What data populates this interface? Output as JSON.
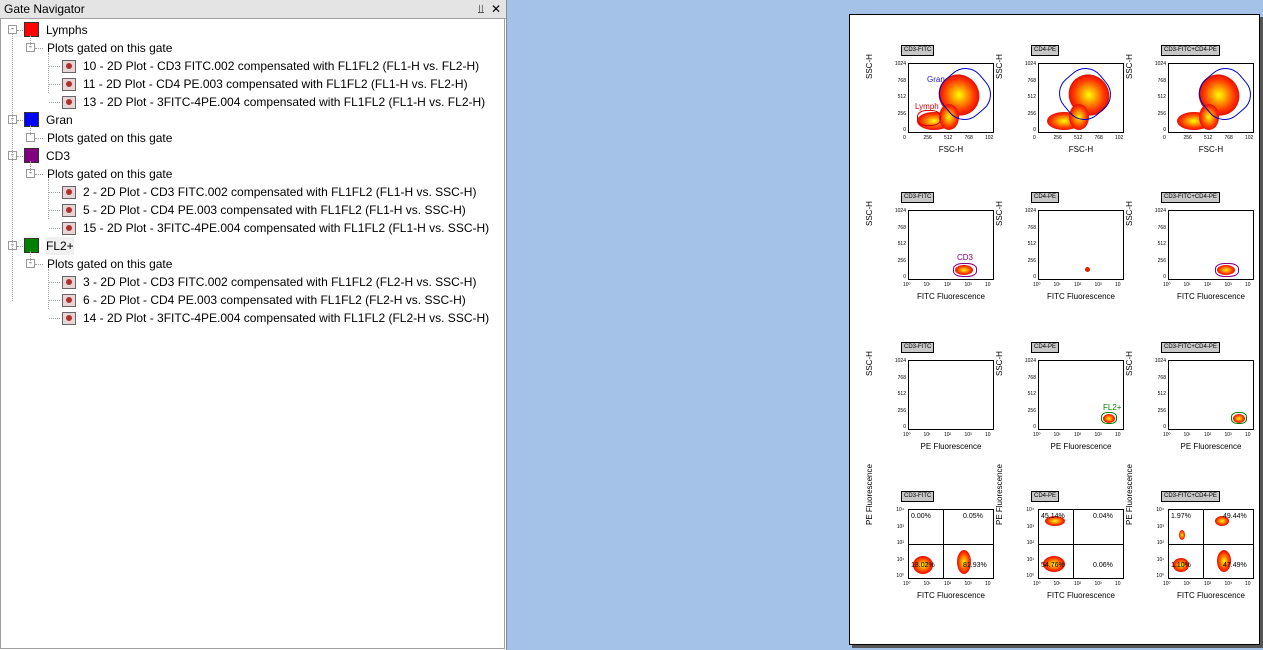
{
  "navigator": {
    "title": "Gate Navigator",
    "pin_glyph": "⫫",
    "close_glyph": "✕",
    "gates": [
      {
        "name": "Lymphs",
        "color": "#ff0000",
        "sub_label": "Plots gated on this gate",
        "plots": [
          "10 - 2D Plot - CD3 FITC.002 compensated with FL1FL2 (FL1-H vs. FL2-H)",
          "11 - 2D Plot - CD4 PE.003 compensated with FL1FL2 (FL1-H vs. FL2-H)",
          "13 - 2D Plot - 3FITC-4PE.004 compensated with FL1FL2 (FL1-H vs. FL2-H)"
        ]
      },
      {
        "name": "Gran",
        "color": "#0000ff",
        "sub_label": "Plots gated on this gate",
        "plots": []
      },
      {
        "name": "CD3",
        "color": "#800080",
        "sub_label": "Plots gated on this gate",
        "plots": [
          "2 - 2D Plot - CD3 FITC.002 compensated with FL1FL2 (FL1-H vs. SSC-H)",
          "5 - 2D Plot - CD4 PE.003 compensated with FL1FL2 (FL1-H vs. SSC-H)",
          "15 - 2D Plot - 3FITC-4PE.004 compensated with FL1FL2 (FL1-H vs. SSC-H)"
        ]
      },
      {
        "name": "FL2+",
        "color": "#008000",
        "sub_label": "Plots gated on this gate",
        "plots": [
          "3 - 2D Plot - CD3 FITC.002 compensated with FL1FL2 (FL2-H vs. SSC-H)",
          "6 - 2D Plot - CD4 PE.003 compensated with FL1FL2 (FL2-H vs. SSC-H)",
          "14 - 2D Plot - 3FITC-4PE.004 compensated with FL1FL2 (FL2-H vs. SSC-H)"
        ]
      }
    ]
  },
  "layout_page": {
    "columns": [
      "CD3-FITC",
      "CD4-PE",
      "CD3-FITC+CD4-PE"
    ],
    "rows": [
      {
        "ylabel": "SSC-H",
        "xlabel": "FSC-H",
        "yticks": [
          "1024",
          "768",
          "512",
          "256",
          "0"
        ],
        "xticks": [
          "0",
          "256",
          "512",
          "768",
          "102"
        ],
        "scale": "linear",
        "gates": [
          [
            "Gran",
            "Lymph"
          ],
          [],
          []
        ]
      },
      {
        "ylabel": "SSC-H",
        "xlabel": "FITC Fluorescence",
        "yticks": [
          "1024",
          "768",
          "512",
          "256",
          "0"
        ],
        "xticks": [
          "10⁰",
          "10¹",
          "10²",
          "10³",
          "10"
        ],
        "scale": "log",
        "gates": [
          [
            "CD3"
          ],
          [],
          []
        ]
      },
      {
        "ylabel": "SSC-H",
        "xlabel": "PE Fluorescence",
        "yticks": [
          "1024",
          "768",
          "512",
          "256",
          "0"
        ],
        "xticks": [
          "10⁰",
          "10¹",
          "10²",
          "10³",
          "10"
        ],
        "scale": "log",
        "gates": [
          [],
          [
            "FL2+"
          ],
          []
        ]
      },
      {
        "ylabel": "PE Fluorescence",
        "xlabel": "FITC Fluorescence",
        "yticks": [
          "10⁴",
          "10³",
          "10²",
          "10¹",
          "10⁰"
        ],
        "xticks": [
          "10⁰",
          "10¹",
          "10²",
          "10³",
          "10"
        ],
        "scale": "log",
        "quadrants": [
          {
            "ul": "0.00%",
            "ur": "0.05%",
            "ll": "18.02%",
            "lr": "81.93%"
          },
          {
            "ul": "45.14%",
            "ur": "0.04%",
            "ll": "54.76%",
            "lr": "0.06%"
          },
          {
            "ul": "1.97%",
            "ur": "49.44%",
            "ll": "1.10%",
            "lr": "47.49%"
          }
        ]
      }
    ]
  }
}
